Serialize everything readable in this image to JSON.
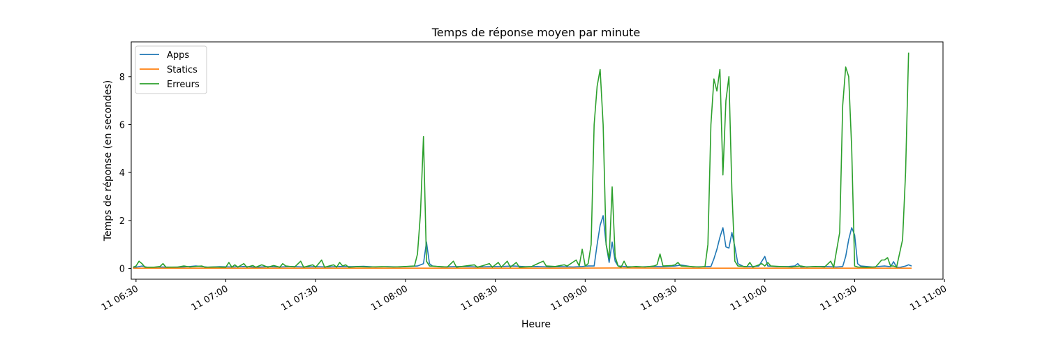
{
  "chart_data": {
    "type": "line",
    "title": "Temps de réponse moyen par minute",
    "xlabel": "Heure",
    "ylabel": "Temps de réponse (en secondes)",
    "x_range_minutes": [
      -1.6,
      269.5
    ],
    "ylim": [
      -0.45,
      9.45
    ],
    "grid": false,
    "legend_position": "top-left",
    "x_ticks": [
      {
        "t": 0,
        "label": "11 06:30"
      },
      {
        "t": 30,
        "label": "11 07:00"
      },
      {
        "t": 60,
        "label": "11 07:30"
      },
      {
        "t": 90,
        "label": "11 08:00"
      },
      {
        "t": 120,
        "label": "11 08:30"
      },
      {
        "t": 150,
        "label": "11 09:00"
      },
      {
        "t": 180,
        "label": "11 09:30"
      },
      {
        "t": 210,
        "label": "11 10:00"
      },
      {
        "t": 240,
        "label": "11 10:30"
      },
      {
        "t": 270,
        "label": "11 11:00"
      }
    ],
    "y_ticks": [
      0,
      2,
      4,
      6,
      8
    ],
    "series": [
      {
        "name": "Apps",
        "color": "#1f77b4",
        "points": [
          [
            -1,
            0.02
          ],
          [
            0,
            0.05
          ],
          [
            2,
            0.1
          ],
          [
            4,
            0.04
          ],
          [
            8,
            0.06
          ],
          [
            12,
            0.05
          ],
          [
            16,
            0.06
          ],
          [
            20,
            0.1
          ],
          [
            24,
            0.05
          ],
          [
            28,
            0.07
          ],
          [
            32,
            0.06
          ],
          [
            36,
            0.08
          ],
          [
            40,
            0.05
          ],
          [
            44,
            0.07
          ],
          [
            48,
            0.06
          ],
          [
            52,
            0.08
          ],
          [
            56,
            0.06
          ],
          [
            60,
            0.07
          ],
          [
            64,
            0.06
          ],
          [
            68,
            0.08
          ],
          [
            72,
            0.07
          ],
          [
            76,
            0.09
          ],
          [
            80,
            0.06
          ],
          [
            84,
            0.07
          ],
          [
            88,
            0.06
          ],
          [
            91,
            0.08
          ],
          [
            94,
            0.1
          ],
          [
            96,
            0.2
          ],
          [
            97,
            1.1
          ],
          [
            98,
            0.2
          ],
          [
            99,
            0.1
          ],
          [
            102,
            0.06
          ],
          [
            106,
            0.07
          ],
          [
            110,
            0.08
          ],
          [
            114,
            0.06
          ],
          [
            118,
            0.07
          ],
          [
            122,
            0.08
          ],
          [
            126,
            0.1
          ],
          [
            130,
            0.07
          ],
          [
            134,
            0.08
          ],
          [
            138,
            0.06
          ],
          [
            142,
            0.07
          ],
          [
            146,
            0.06
          ],
          [
            149,
            0.08
          ],
          [
            151,
            0.1
          ],
          [
            153,
            0.1
          ],
          [
            154,
            1.0
          ],
          [
            155,
            1.8
          ],
          [
            156,
            2.2
          ],
          [
            157,
            1.0
          ],
          [
            158,
            0.25
          ],
          [
            159,
            1.1
          ],
          [
            160,
            0.3
          ],
          [
            161,
            0.1
          ],
          [
            164,
            0.07
          ],
          [
            168,
            0.06
          ],
          [
            172,
            0.08
          ],
          [
            176,
            0.07
          ],
          [
            180,
            0.1
          ],
          [
            182,
            0.14
          ],
          [
            184,
            0.1
          ],
          [
            186,
            0.06
          ],
          [
            190,
            0.07
          ],
          [
            192,
            0.08
          ],
          [
            193,
            0.4
          ],
          [
            194,
            0.8
          ],
          [
            195,
            1.3
          ],
          [
            196,
            1.7
          ],
          [
            197,
            0.9
          ],
          [
            198,
            0.85
          ],
          [
            199,
            1.5
          ],
          [
            200,
            0.9
          ],
          [
            201,
            0.2
          ],
          [
            203,
            0.07
          ],
          [
            206,
            0.08
          ],
          [
            208,
            0.1
          ],
          [
            210,
            0.5
          ],
          [
            211,
            0.1
          ],
          [
            214,
            0.07
          ],
          [
            218,
            0.08
          ],
          [
            220,
            0.1
          ],
          [
            221,
            0.2
          ],
          [
            222,
            0.06
          ],
          [
            226,
            0.07
          ],
          [
            230,
            0.08
          ],
          [
            234,
            0.06
          ],
          [
            236,
            0.08
          ],
          [
            237,
            0.5
          ],
          [
            238,
            1.2
          ],
          [
            239,
            1.7
          ],
          [
            240,
            1.4
          ],
          [
            241,
            0.2
          ],
          [
            242,
            0.1
          ],
          [
            246,
            0.06
          ],
          [
            250,
            0.1
          ],
          [
            252,
            0.07
          ],
          [
            253,
            0.28
          ],
          [
            254,
            0.05
          ],
          [
            255,
            0.04
          ],
          [
            257,
            0.1
          ],
          [
            258,
            0.15
          ],
          [
            259,
            0.1
          ]
        ]
      },
      {
        "name": "Statics",
        "color": "#ff7f0e",
        "points": [
          [
            -1,
            0.01
          ],
          [
            20,
            0.01
          ],
          [
            40,
            0.01
          ],
          [
            60,
            0.01
          ],
          [
            80,
            0.01
          ],
          [
            100,
            0.01
          ],
          [
            120,
            0.01
          ],
          [
            140,
            0.01
          ],
          [
            160,
            0.02
          ],
          [
            180,
            0.01
          ],
          [
            200,
            0.01
          ],
          [
            220,
            0.01
          ],
          [
            240,
            0.01
          ],
          [
            259,
            0.01
          ]
        ]
      },
      {
        "name": "Erreurs",
        "color": "#2ca02c",
        "points": [
          [
            -1,
            0.05
          ],
          [
            0,
            0.1
          ],
          [
            1,
            0.3
          ],
          [
            2,
            0.2
          ],
          [
            3,
            0.05
          ],
          [
            6,
            0.05
          ],
          [
            8,
            0.08
          ],
          [
            9,
            0.2
          ],
          [
            10,
            0.05
          ],
          [
            14,
            0.06
          ],
          [
            16,
            0.1
          ],
          [
            18,
            0.06
          ],
          [
            22,
            0.1
          ],
          [
            23,
            0.05
          ],
          [
            26,
            0.06
          ],
          [
            30,
            0.05
          ],
          [
            31,
            0.25
          ],
          [
            32,
            0.05
          ],
          [
            33,
            0.15
          ],
          [
            34,
            0.05
          ],
          [
            36,
            0.2
          ],
          [
            37,
            0.05
          ],
          [
            39,
            0.12
          ],
          [
            40,
            0.05
          ],
          [
            42,
            0.15
          ],
          [
            44,
            0.05
          ],
          [
            46,
            0.12
          ],
          [
            48,
            0.05
          ],
          [
            49,
            0.2
          ],
          [
            50,
            0.1
          ],
          [
            53,
            0.06
          ],
          [
            55,
            0.3
          ],
          [
            56,
            0.05
          ],
          [
            59,
            0.15
          ],
          [
            60,
            0.05
          ],
          [
            62,
            0.35
          ],
          [
            63,
            0.05
          ],
          [
            66,
            0.15
          ],
          [
            67,
            0.05
          ],
          [
            68,
            0.25
          ],
          [
            69,
            0.1
          ],
          [
            70,
            0.15
          ],
          [
            71,
            0.05
          ],
          [
            74,
            0.07
          ],
          [
            78,
            0.06
          ],
          [
            82,
            0.07
          ],
          [
            86,
            0.06
          ],
          [
            90,
            0.08
          ],
          [
            93,
            0.1
          ],
          [
            94,
            0.6
          ],
          [
            95,
            2.3
          ],
          [
            96,
            5.5
          ],
          [
            97,
            0.3
          ],
          [
            98,
            0.1
          ],
          [
            101,
            0.08
          ],
          [
            104,
            0.06
          ],
          [
            106,
            0.3
          ],
          [
            107,
            0.05
          ],
          [
            110,
            0.1
          ],
          [
            113,
            0.15
          ],
          [
            114,
            0.05
          ],
          [
            116,
            0.12
          ],
          [
            118,
            0.2
          ],
          [
            119,
            0.05
          ],
          [
            121,
            0.25
          ],
          [
            122,
            0.05
          ],
          [
            124,
            0.3
          ],
          [
            125,
            0.05
          ],
          [
            127,
            0.25
          ],
          [
            128,
            0.05
          ],
          [
            132,
            0.07
          ],
          [
            135,
            0.25
          ],
          [
            136,
            0.3
          ],
          [
            137,
            0.1
          ],
          [
            140,
            0.08
          ],
          [
            143,
            0.15
          ],
          [
            144,
            0.1
          ],
          [
            147,
            0.35
          ],
          [
            148,
            0.1
          ],
          [
            149,
            0.8
          ],
          [
            150,
            0.1
          ],
          [
            151,
            0.2
          ],
          [
            152,
            1.0
          ],
          [
            153,
            6.0
          ],
          [
            154,
            7.6
          ],
          [
            155,
            8.3
          ],
          [
            156,
            6.0
          ],
          [
            157,
            1.0
          ],
          [
            158,
            0.4
          ],
          [
            159,
            3.4
          ],
          [
            160,
            0.5
          ],
          [
            161,
            0.1
          ],
          [
            162,
            0.05
          ],
          [
            163,
            0.3
          ],
          [
            164,
            0.05
          ],
          [
            167,
            0.08
          ],
          [
            170,
            0.06
          ],
          [
            173,
            0.1
          ],
          [
            174,
            0.15
          ],
          [
            175,
            0.6
          ],
          [
            176,
            0.1
          ],
          [
            179,
            0.12
          ],
          [
            180,
            0.15
          ],
          [
            181,
            0.25
          ],
          [
            182,
            0.1
          ],
          [
            185,
            0.08
          ],
          [
            188,
            0.06
          ],
          [
            190,
            0.07
          ],
          [
            191,
            1.0
          ],
          [
            192,
            6.0
          ],
          [
            193,
            7.9
          ],
          [
            194,
            7.4
          ],
          [
            195,
            8.3
          ],
          [
            196,
            3.9
          ],
          [
            197,
            7.0
          ],
          [
            198,
            8.0
          ],
          [
            199,
            3.2
          ],
          [
            200,
            0.3
          ],
          [
            201,
            0.1
          ],
          [
            204,
            0.07
          ],
          [
            205,
            0.25
          ],
          [
            206,
            0.05
          ],
          [
            209,
            0.2
          ],
          [
            210,
            0.1
          ],
          [
            211,
            0.25
          ],
          [
            212,
            0.1
          ],
          [
            215,
            0.08
          ],
          [
            219,
            0.06
          ],
          [
            222,
            0.1
          ],
          [
            224,
            0.06
          ],
          [
            227,
            0.08
          ],
          [
            230,
            0.06
          ],
          [
            232,
            0.3
          ],
          [
            233,
            0.05
          ],
          [
            235,
            1.5
          ],
          [
            236,
            6.8
          ],
          [
            237,
            8.4
          ],
          [
            238,
            8.0
          ],
          [
            239,
            5.0
          ],
          [
            240,
            0.1
          ],
          [
            241,
            0.06
          ],
          [
            244,
            0.05
          ],
          [
            247,
            0.06
          ],
          [
            249,
            0.35
          ],
          [
            250,
            0.35
          ],
          [
            251,
            0.45
          ],
          [
            252,
            0.1
          ],
          [
            253,
            0.1
          ],
          [
            254,
            0.05
          ],
          [
            256,
            1.2
          ],
          [
            257,
            4.0
          ],
          [
            258,
            9.0
          ]
        ]
      }
    ]
  }
}
